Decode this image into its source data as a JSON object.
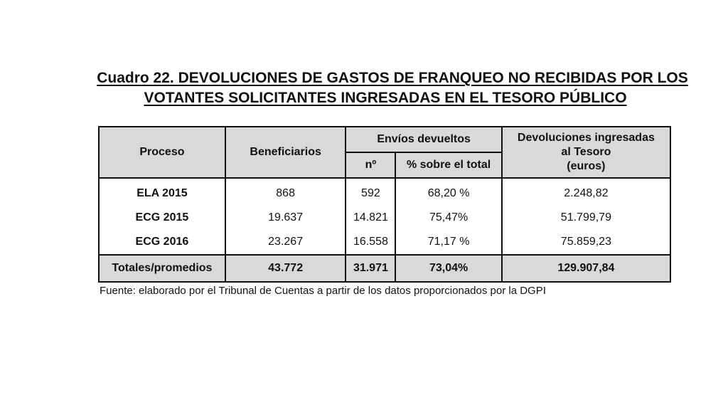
{
  "title": {
    "line1": "Cuadro 22. DEVOLUCIONES DE GASTOS DE FRANQUEO NO RECIBIDAS POR LOS",
    "line2": "VOTANTES SOLICITANTES INGRESADAS EN EL TESORO PÚBLICO"
  },
  "table": {
    "headers": {
      "proceso": "Proceso",
      "beneficiarios": "Beneficiarios",
      "envios": "Envíos devueltos",
      "numero": "nº",
      "porcentaje": "% sobre el total",
      "devoluciones_line1": "Devoluciones ingresadas",
      "devoluciones_line2": "al Tesoro",
      "devoluciones_line3": "(euros)"
    },
    "rows": [
      {
        "proceso": "ELA 2015",
        "beneficiarios": "868",
        "numero": "592",
        "porcentaje": "68,20 %",
        "devoluciones": "2.248,82"
      },
      {
        "proceso": "ECG 2015",
        "beneficiarios": "19.637",
        "numero": "14.821",
        "porcentaje": "75,47%",
        "devoluciones": "51.799,79"
      },
      {
        "proceso": "ECG 2016",
        "beneficiarios": "23.267",
        "numero": "16.558",
        "porcentaje": "71,17 %",
        "devoluciones": "75.859,23"
      }
    ],
    "totals": {
      "label": "Totales/promedios",
      "beneficiarios": "43.772",
      "numero": "31.971",
      "porcentaje": "73,04%",
      "devoluciones": "129.907,84"
    }
  },
  "source": "Fuente: elaborado por el Tribunal de Cuentas a partir de los datos proporcionados por la DGPI"
}
